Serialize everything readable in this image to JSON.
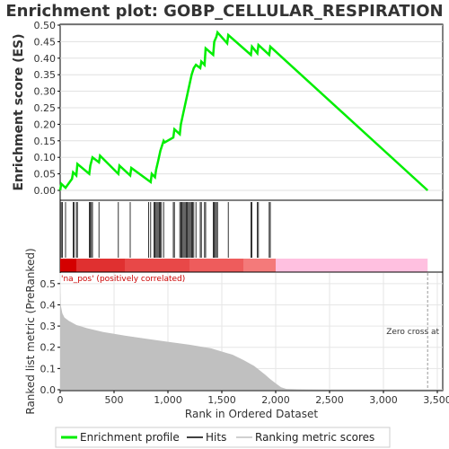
{
  "chart_data": [
    {
      "type": "line",
      "title": "Enrichment plot: GOBP_CELLULAR_RESPIRATION",
      "ylabel": "Enrichment score (ES)",
      "ylim": [
        0,
        0.5
      ],
      "yticks": [
        0.0,
        0.05,
        0.1,
        0.15,
        0.2,
        0.25,
        0.3,
        0.35,
        0.4,
        0.45,
        0.5
      ],
      "ytick_labels": [
        "0.00",
        "0.05",
        "0.10",
        "0.15",
        "0.20",
        "0.25",
        "0.30",
        "0.35",
        "0.40",
        "0.45",
        "0.50"
      ],
      "xlim": [
        0,
        3550
      ],
      "grid": true,
      "series": [
        {
          "name": "Enrichment profile",
          "color": "#00ee00",
          "x": [
            0,
            10,
            50,
            110,
            120,
            150,
            160,
            270,
            280,
            300,
            360,
            370,
            540,
            550,
            650,
            660,
            840,
            850,
            880,
            890,
            910,
            930,
            960,
            970,
            1050,
            1060,
            1110,
            1120,
            1140,
            1160,
            1180,
            1200,
            1220,
            1240,
            1260,
            1300,
            1310,
            1340,
            1350,
            1420,
            1430,
            1450,
            1460,
            1550,
            1560,
            1770,
            1780,
            1830,
            1840,
            1940,
            1950,
            3410
          ],
          "y": [
            0.0,
            0.02,
            0.008,
            0.035,
            0.055,
            0.045,
            0.08,
            0.05,
            0.075,
            0.1,
            0.085,
            0.105,
            0.05,
            0.075,
            0.045,
            0.068,
            0.025,
            0.05,
            0.04,
            0.062,
            0.09,
            0.12,
            0.15,
            0.145,
            0.16,
            0.185,
            0.17,
            0.2,
            0.23,
            0.26,
            0.29,
            0.32,
            0.35,
            0.37,
            0.38,
            0.37,
            0.39,
            0.38,
            0.43,
            0.41,
            0.45,
            0.465,
            0.478,
            0.445,
            0.47,
            0.41,
            0.435,
            0.415,
            0.44,
            0.41,
            0.435,
            0.0
          ]
        }
      ]
    },
    {
      "type": "hits",
      "xlim": [
        0,
        3550
      ],
      "hits": [
        10,
        20,
        50,
        120,
        130,
        150,
        160,
        270,
        280,
        290,
        300,
        360,
        540,
        650,
        820,
        840,
        870,
        880,
        890,
        900,
        910,
        920,
        930,
        940,
        960,
        1050,
        1060,
        1110,
        1120,
        1130,
        1140,
        1150,
        1160,
        1170,
        1180,
        1190,
        1200,
        1210,
        1220,
        1230,
        1240,
        1260,
        1300,
        1310,
        1340,
        1350,
        1420,
        1430,
        1440,
        1450,
        1460,
        1560,
        1770,
        1780,
        1830,
        1840,
        1940,
        1950
      ]
    },
    {
      "type": "area",
      "xlabel": "Rank in Ordered Dataset",
      "ylabel": "Ranked list metric (PreRanked)",
      "ylim": [
        0,
        0.55
      ],
      "yticks": [
        0.0,
        0.1,
        0.2,
        0.3,
        0.4,
        0.5
      ],
      "ytick_labels": [
        "0.0",
        "0.1",
        "0.2",
        "0.3",
        "0.4",
        "0.5"
      ],
      "xlim": [
        0,
        3550
      ],
      "xticks": [
        0,
        500,
        1000,
        1500,
        2000,
        2500,
        3000,
        3500
      ],
      "xtick_labels": [
        "0",
        "500",
        "1,000",
        "1,500",
        "2,000",
        "2,500",
        "3,000",
        "3,500"
      ],
      "color": "#c0c0c0",
      "x": [
        0,
        5,
        20,
        40,
        80,
        150,
        250,
        400,
        600,
        800,
        1000,
        1200,
        1400,
        1600,
        1700,
        1800,
        1900,
        1950,
        2000,
        2050,
        2100,
        2200,
        2300,
        2500,
        3000,
        3410
      ],
      "y": [
        0.5,
        0.4,
        0.36,
        0.34,
        0.325,
        0.305,
        0.29,
        0.272,
        0.255,
        0.24,
        0.226,
        0.212,
        0.195,
        0.165,
        0.14,
        0.112,
        0.072,
        0.05,
        0.03,
        0.012,
        0.004,
        0.002,
        0.001,
        0.0,
        0.0,
        0.0
      ],
      "zero_cross_x": 3410,
      "annotations": {
        "positive": "'na_pos' (positively correlated)",
        "zero_cross": "Zero cross at"
      }
    }
  ],
  "legend": {
    "position": "bottom",
    "items": [
      {
        "label": "Enrichment profile",
        "color": "#00ee00",
        "kind": "line-thick"
      },
      {
        "label": "Hits",
        "color": "#000000",
        "kind": "line"
      },
      {
        "label": "Ranking metric scores",
        "color": "#c0c0c0",
        "kind": "line"
      }
    ]
  },
  "colors": {
    "profile": "#00ee00",
    "positive_strip": "#e83030",
    "negative_strip": "#ffc0e0",
    "positive_text": "#cc0000",
    "metric_fill": "#c0c0c0"
  }
}
